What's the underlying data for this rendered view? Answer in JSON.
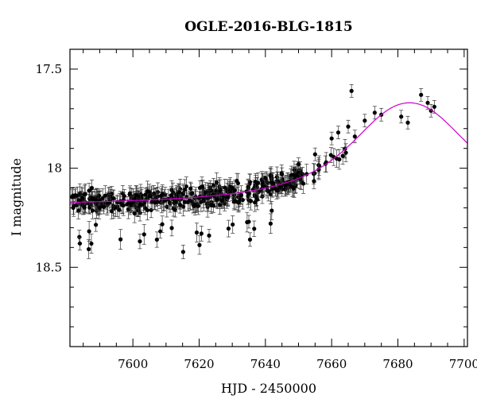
{
  "chart_data": {
    "type": "scatter",
    "title": "OGLE-2016-BLG-1815",
    "xlabel": "HJD - 2450000",
    "ylabel": "I magnitude",
    "xlim": [
      7581,
      7701
    ],
    "ylim": [
      18.9,
      17.4
    ],
    "y_inverted": true,
    "x_major_ticks": [
      7600,
      7620,
      7640,
      7660,
      7680,
      7700
    ],
    "x_minor_step": 5,
    "y_major_ticks": [
      17.5,
      18,
      18.5
    ],
    "y_minor_step": 0.1,
    "x_tick_labels": [
      "7600",
      "7620",
      "7640",
      "7660",
      "7680",
      "7700"
    ],
    "y_tick_labels": [
      "17.5",
      "18",
      "18.5"
    ],
    "grid": false,
    "legend": "none",
    "colors": {
      "points": "#000000",
      "model": "#cc00cc",
      "axes": "#000000"
    },
    "model_curve": {
      "baseline_mag": 18.19,
      "peak_mag": 17.67,
      "peak_time": 7683.5,
      "shape": "smooth single-lens microlensing rise"
    },
    "series": [
      {
        "style": "points with error bars",
        "x_range": [
          7581.5,
          7691.5
        ],
        "n_points_approx": 420,
        "typical_error": 0.04,
        "anchor_points": [
          {
            "x": 7582,
            "y": 18.2
          },
          {
            "x": 7584,
            "y": 18.38
          },
          {
            "x": 7590,
            "y": 18.2
          },
          {
            "x": 7600,
            "y": 18.17
          },
          {
            "x": 7610,
            "y": 18.16
          },
          {
            "x": 7620,
            "y": 18.15
          },
          {
            "x": 7623,
            "y": 18.34
          },
          {
            "x": 7630,
            "y": 18.1
          },
          {
            "x": 7635,
            "y": 18.27
          },
          {
            "x": 7640,
            "y": 18.05
          },
          {
            "x": 7645,
            "y": 18.03
          },
          {
            "x": 7650,
            "y": 17.98
          },
          {
            "x": 7655,
            "y": 17.93
          },
          {
            "x": 7660,
            "y": 17.85
          },
          {
            "x": 7662,
            "y": 17.82
          },
          {
            "x": 7665,
            "y": 17.79
          },
          {
            "x": 7666,
            "y": 17.61
          },
          {
            "x": 7667,
            "y": 17.84
          },
          {
            "x": 7670,
            "y": 17.76
          },
          {
            "x": 7673,
            "y": 17.72
          },
          {
            "x": 7675,
            "y": 17.73
          },
          {
            "x": 7681,
            "y": 17.74
          },
          {
            "x": 7683,
            "y": 17.77
          },
          {
            "x": 7687,
            "y": 17.63
          },
          {
            "x": 7689,
            "y": 17.67
          },
          {
            "x": 7690,
            "y": 17.71
          },
          {
            "x": 7691,
            "y": 17.69
          }
        ]
      }
    ]
  }
}
